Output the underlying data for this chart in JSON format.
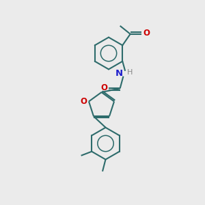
{
  "background_color": "#ebebeb",
  "bond_color": "#2d6b6b",
  "N_color": "#2020cc",
  "O_color": "#cc0000",
  "H_color": "#888888",
  "line_width": 1.5,
  "fig_width": 3.0,
  "fig_height": 3.0,
  "dpi": 100,
  "xlim": [
    0,
    10
  ],
  "ylim": [
    0,
    10
  ]
}
